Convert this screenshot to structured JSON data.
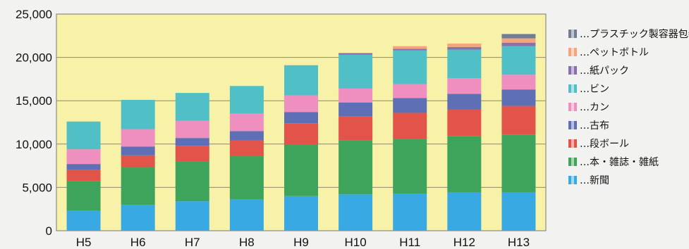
{
  "chart_data": {
    "type": "bar",
    "stacked": true,
    "categories": [
      "H5",
      "H6",
      "H7",
      "H8",
      "H9",
      "H10",
      "H11",
      "H12",
      "H13"
    ],
    "ylim": [
      0,
      25000
    ],
    "yticks": [
      "0",
      "5,000",
      "10,000",
      "15,000",
      "20,000",
      "25,000"
    ],
    "yticks_values": [
      0,
      5000,
      10000,
      15000,
      20000,
      25000
    ],
    "grid": true,
    "legend_position": "right",
    "series": [
      {
        "name": "…新聞",
        "color": "#39a9e3",
        "values": [
          2300,
          3000,
          3400,
          3600,
          4000,
          4200,
          4300,
          4400,
          4400
        ]
      },
      {
        "name": "…本・雑誌・雑紙",
        "color": "#3ea35b",
        "values": [
          3400,
          4300,
          4600,
          5000,
          5900,
          6200,
          6300,
          6500,
          6700
        ]
      },
      {
        "name": "…段ボール",
        "color": "#e2534a",
        "values": [
          1300,
          1400,
          1800,
          1800,
          2500,
          2800,
          3000,
          3100,
          3300
        ]
      },
      {
        "name": "…古布",
        "color": "#5e6fb5",
        "values": [
          700,
          1000,
          900,
          1100,
          1300,
          1600,
          1700,
          1800,
          1900
        ]
      },
      {
        "name": "…カン",
        "color": "#ee8fc0",
        "values": [
          1700,
          2000,
          2000,
          2000,
          1900,
          1600,
          1600,
          1800,
          1700
        ]
      },
      {
        "name": "…ビン",
        "color": "#51c0c6",
        "values": [
          3200,
          3400,
          3200,
          3200,
          3500,
          3900,
          3900,
          3300,
          3300
        ]
      },
      {
        "name": "…紙パック",
        "color": "#8a6fae",
        "values": [
          0,
          0,
          0,
          0,
          0,
          200,
          200,
          300,
          400
        ]
      },
      {
        "name": "…ペットボトル",
        "color": "#f4a57e",
        "values": [
          0,
          0,
          0,
          0,
          0,
          0,
          300,
          400,
          500
        ]
      },
      {
        "name": "…プラスチック製容器包装",
        "color": "#6f7d95",
        "values": [
          0,
          0,
          0,
          0,
          0,
          0,
          0,
          0,
          500
        ]
      }
    ],
    "legend_order": [
      8,
      7,
      6,
      5,
      4,
      3,
      2,
      1,
      0
    ]
  }
}
